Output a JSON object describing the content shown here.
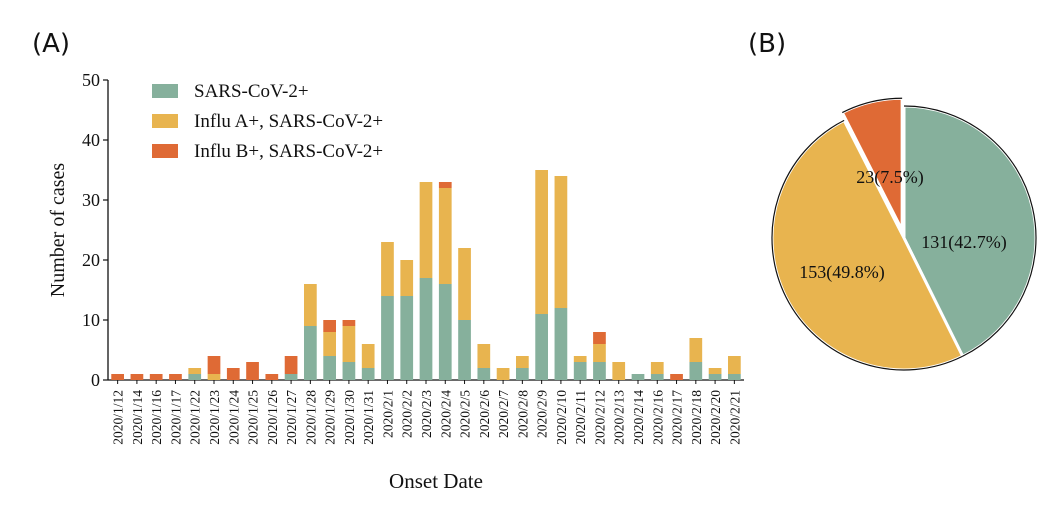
{
  "panel_labels": {
    "a": "(A)",
    "b": "(B)"
  },
  "chart_data": [
    {
      "type": "bar",
      "stacked": true,
      "xlabel": "Onset Date",
      "ylabel": "Number of  cases",
      "ylim": [
        0,
        50
      ],
      "yticks": [
        0,
        10,
        20,
        30,
        40,
        50
      ],
      "legend_position": "top-left",
      "grid": false,
      "categories": [
        "2020/1/12",
        "2020/1/14",
        "2020/1/16",
        "2020/1/17",
        "2020/1/22",
        "2020/1/23",
        "2020/1/24",
        "2020/1/25",
        "2020/1/26",
        "2020/1/27",
        "2020/1/28",
        "2020/1/29",
        "2020/1/30",
        "2020/1/31",
        "2020/2/1",
        "2020/2/2",
        "2020/2/3",
        "2020/2/4",
        "2020/2/5",
        "2020/2/6",
        "2020/2/7",
        "2020/2/8",
        "2020/2/9",
        "2020/2/10",
        "2020/2/11",
        "2020/2/12",
        "2020/2/13",
        "2020/2/14",
        "2020/2/16",
        "2020/2/17",
        "2020/2/18",
        "2020/2/20",
        "2020/2/21"
      ],
      "series": [
        {
          "name": "SARS-CoV-2+",
          "color": "#86b09c",
          "values": [
            0,
            0,
            0,
            0,
            1,
            0,
            0,
            0,
            0,
            1,
            9,
            4,
            3,
            2,
            14,
            14,
            17,
            16,
            10,
            2,
            0,
            2,
            11,
            12,
            3,
            3,
            0,
            1,
            1,
            0,
            3,
            1,
            1
          ]
        },
        {
          "name": "Influ A+, SARS-CoV-2+",
          "color": "#e8b44f",
          "values": [
            0,
            0,
            0,
            0,
            1,
            1,
            0,
            0,
            0,
            0,
            7,
            4,
            6,
            4,
            9,
            6,
            16,
            16,
            12,
            4,
            2,
            2,
            24,
            22,
            1,
            3,
            3,
            0,
            2,
            0,
            4,
            1,
            3
          ]
        },
        {
          "name": "Influ B+, SARS-CoV-2+",
          "color": "#df6a35",
          "values": [
            1,
            1,
            1,
            1,
            0,
            3,
            2,
            3,
            1,
            3,
            0,
            2,
            1,
            0,
            0,
            0,
            0,
            1,
            0,
            0,
            0,
            0,
            0,
            0,
            0,
            2,
            0,
            0,
            0,
            1,
            0,
            0,
            0
          ]
        }
      ]
    },
    {
      "type": "pie",
      "slices": [
        {
          "name": "SARS-CoV-2+",
          "value": 131,
          "percent": 42.7,
          "label": "131(42.7%)",
          "color": "#86b09c"
        },
        {
          "name": "Influ A+, SARS-CoV-2+",
          "value": 153,
          "percent": 49.8,
          "label": "153(49.8%)",
          "color": "#e8b44f"
        },
        {
          "name": "Influ B+, SARS-CoV-2+",
          "value": 23,
          "percent": 7.5,
          "label": "23(7.5%)",
          "color": "#df6a35",
          "exploded": true
        }
      ]
    }
  ]
}
